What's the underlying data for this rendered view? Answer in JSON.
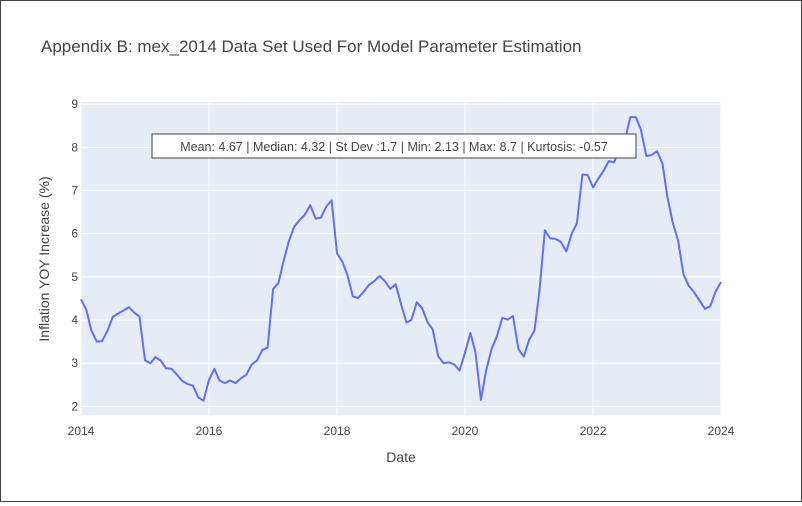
{
  "chart_data": {
    "type": "line",
    "title": "Appendix B: mex_2014 Data Set Used For Model Parameter Estimation",
    "xlabel": "Date",
    "ylabel": "Inflation YOY Increase (%)",
    "xlim": [
      "2014-01-01",
      "2024-01-01"
    ],
    "ylim": [
      1.8,
      9.05
    ],
    "grid": true,
    "x_ticks": [
      {
        "label": "2014",
        "year": 2014
      },
      {
        "label": "2016",
        "year": 2016
      },
      {
        "label": "2018",
        "year": 2018
      },
      {
        "label": "2020",
        "year": 2020
      },
      {
        "label": "2022",
        "year": 2022
      },
      {
        "label": "2024",
        "year": 2024
      }
    ],
    "y_ticks": [
      2,
      3,
      4,
      5,
      6,
      7,
      8,
      9
    ],
    "annotation": "Mean: 4.67 | Median: 4.32 | St Dev :1.7 | Min: 2.13 | Max: 8.7 | Kurtosis: -0.57",
    "series": [
      {
        "color": "#636efa",
        "x": [
          "2014-01",
          "2014-02",
          "2014-03",
          "2014-04",
          "2014-05",
          "2014-06",
          "2014-07",
          "2014-08",
          "2014-09",
          "2014-10",
          "2014-11",
          "2014-12",
          "2015-01",
          "2015-02",
          "2015-03",
          "2015-04",
          "2015-05",
          "2015-06",
          "2015-07",
          "2015-08",
          "2015-09",
          "2015-10",
          "2015-11",
          "2015-12",
          "2016-01",
          "2016-02",
          "2016-03",
          "2016-04",
          "2016-05",
          "2016-06",
          "2016-07",
          "2016-08",
          "2016-09",
          "2016-10",
          "2016-11",
          "2016-12",
          "2017-01",
          "2017-02",
          "2017-03",
          "2017-04",
          "2017-05",
          "2017-06",
          "2017-07",
          "2017-08",
          "2017-09",
          "2017-10",
          "2017-11",
          "2017-12",
          "2018-01",
          "2018-02",
          "2018-03",
          "2018-04",
          "2018-05",
          "2018-06",
          "2018-07",
          "2018-08",
          "2018-09",
          "2018-10",
          "2018-11",
          "2018-12",
          "2019-01",
          "2019-02",
          "2019-03",
          "2019-04",
          "2019-05",
          "2019-06",
          "2019-07",
          "2019-08",
          "2019-09",
          "2019-10",
          "2019-11",
          "2019-12",
          "2020-01",
          "2020-02",
          "2020-03",
          "2020-04",
          "2020-05",
          "2020-06",
          "2020-07",
          "2020-08",
          "2020-09",
          "2020-10",
          "2020-11",
          "2020-12",
          "2021-01",
          "2021-02",
          "2021-03",
          "2021-04",
          "2021-05",
          "2021-06",
          "2021-07",
          "2021-08",
          "2021-09",
          "2021-10",
          "2021-11",
          "2021-12",
          "2022-01",
          "2022-02",
          "2022-03",
          "2022-04",
          "2022-05",
          "2022-06",
          "2022-07",
          "2022-08",
          "2022-09",
          "2022-10",
          "2022-11",
          "2022-12",
          "2023-01",
          "2023-02",
          "2023-03",
          "2023-04",
          "2023-05",
          "2023-06",
          "2023-07",
          "2023-08",
          "2023-09",
          "2023-10",
          "2023-11",
          "2023-12"
        ],
        "y": [
          4.48,
          4.23,
          3.76,
          3.5,
          3.51,
          3.75,
          4.07,
          4.15,
          4.22,
          4.3,
          4.17,
          4.08,
          3.07,
          3.0,
          3.14,
          3.06,
          2.88,
          2.87,
          2.74,
          2.59,
          2.52,
          2.48,
          2.21,
          2.13,
          2.61,
          2.87,
          2.6,
          2.54,
          2.6,
          2.54,
          2.65,
          2.73,
          2.97,
          3.06,
          3.31,
          3.36,
          4.72,
          4.86,
          5.35,
          5.82,
          6.16,
          6.31,
          6.44,
          6.66,
          6.35,
          6.37,
          6.63,
          6.77,
          5.55,
          5.34,
          5.04,
          4.55,
          4.51,
          4.65,
          4.81,
          4.9,
          5.02,
          4.9,
          4.72,
          4.83,
          4.37,
          3.94,
          4.0,
          4.41,
          4.28,
          3.95,
          3.78,
          3.16,
          3.0,
          3.02,
          2.97,
          2.83,
          3.24,
          3.7,
          3.25,
          2.15,
          2.84,
          3.33,
          3.62,
          4.05,
          4.01,
          4.09,
          3.33,
          3.15,
          3.54,
          3.76,
          4.67,
          6.08,
          5.89,
          5.88,
          5.81,
          5.59,
          6.0,
          6.24,
          7.37,
          7.36,
          7.07,
          7.28,
          7.45,
          7.68,
          7.65,
          7.99,
          8.15,
          8.7,
          8.7,
          8.41,
          7.8,
          7.82,
          7.91,
          7.62,
          6.85,
          6.25,
          5.84,
          5.06,
          4.79,
          4.64,
          4.45,
          4.26,
          4.32,
          4.66
        ],
        "last_point": {
          "x": "2024-01",
          "y": 4.88
        }
      }
    ]
  }
}
